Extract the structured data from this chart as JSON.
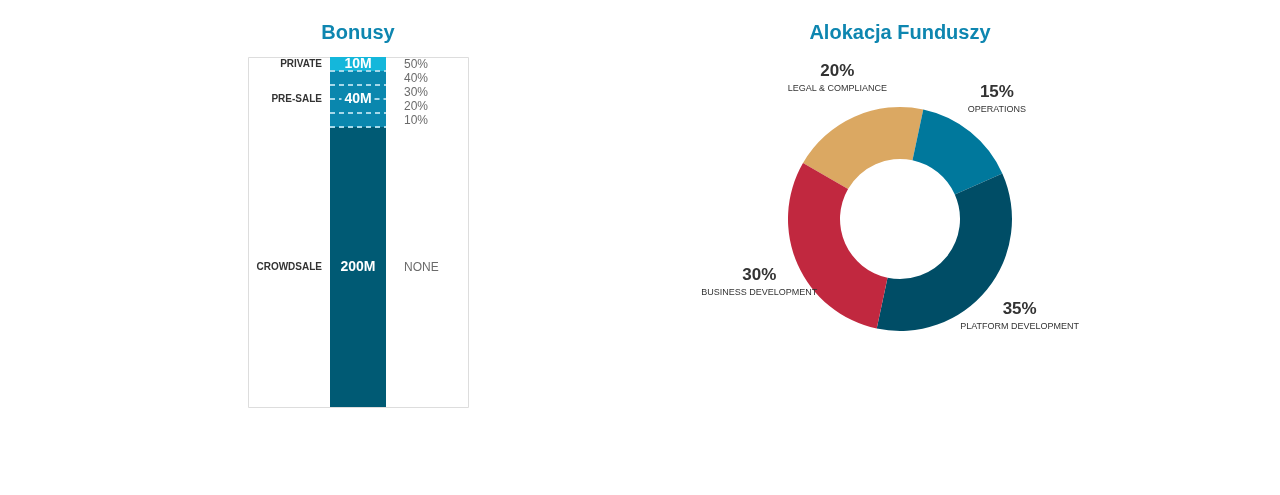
{
  "chart_data": [
    {
      "type": "bar",
      "title": "Bonusy",
      "stacked": true,
      "tick_labels": false,
      "categories": [
        null
      ],
      "series": [
        {
          "name": "CROWDSALE",
          "color": "#005a74",
          "values": [
            200
          ],
          "value_labels": [
            "200M"
          ]
        },
        {
          "name": "PRE-SALE",
          "color": "#0a87ae",
          "values": [
            40
          ],
          "value_labels": [
            "40M"
          ]
        },
        {
          "name": "PRIVATE",
          "color": "#14b7db",
          "values": [
            10
          ],
          "value_labels": [
            "10M"
          ]
        }
      ],
      "ref_lines": [
        {
          "axis": "y",
          "value": 200,
          "color": "#a6d9ea",
          "line_style": "dashed"
        },
        {
          "axis": "y",
          "value": 210,
          "color": "#a6d9ea",
          "line_style": "dashed"
        },
        {
          "axis": "y",
          "value": 220,
          "color": "#a6d9ea",
          "line_style": "dashed"
        },
        {
          "axis": "y",
          "value": 230,
          "color": "#a6d9ea",
          "line_style": "dashed"
        },
        {
          "axis": "y",
          "value": 240,
          "color": "#a6d9ea",
          "line_style": "dashed"
        }
      ],
      "annotations": [
        "50%",
        "40%",
        "30%",
        "20%",
        "10%",
        "NONE"
      ]
    },
    {
      "type": "donut",
      "title": "Alokacja Funduszy",
      "categories": [
        "LEGAL & COMPLIANCE",
        "OPERATIONS",
        "PLATFORM DEVELOPMENT",
        "BUSINESS DEVELOPMENT"
      ],
      "values": [
        20,
        15,
        35,
        30
      ],
      "value_labels": [
        "20%",
        "15%",
        "35%",
        "30%"
      ],
      "colors": [
        "#dba862",
        "#00789c",
        "#004d66",
        "#c1283f"
      ]
    }
  ]
}
